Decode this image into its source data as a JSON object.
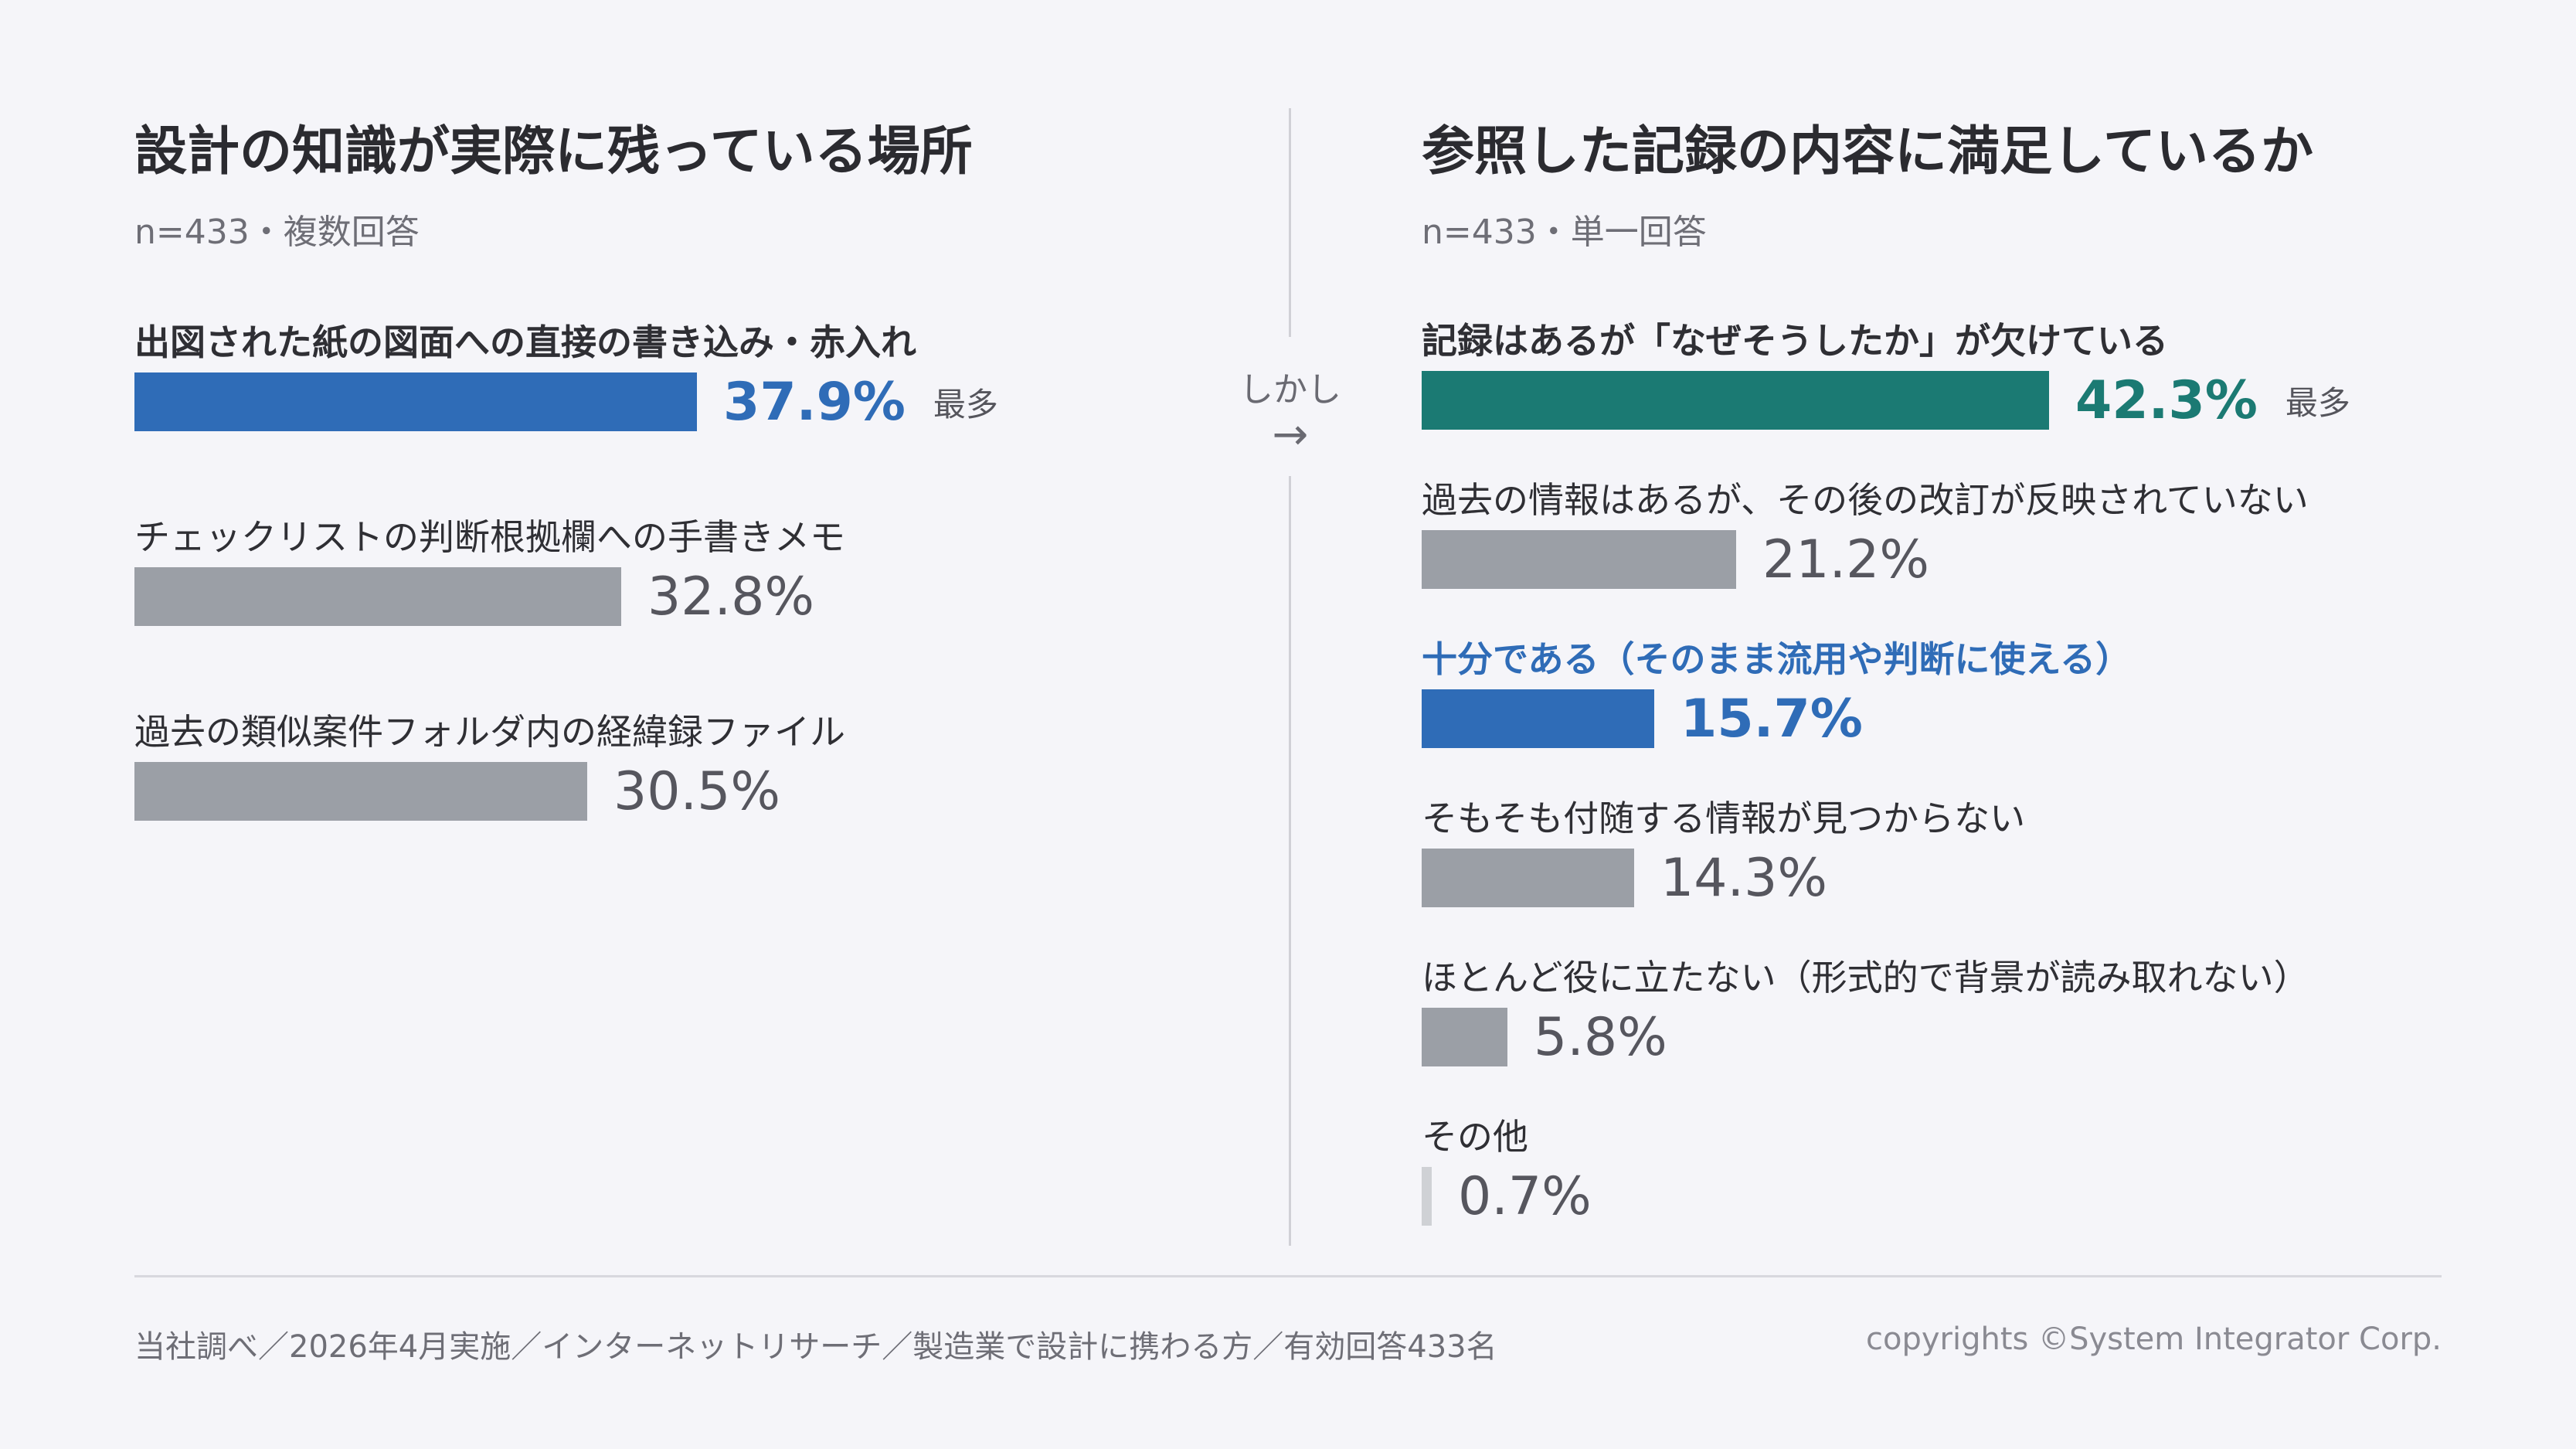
{
  "colors": {
    "blue": "#2f6cb7",
    "teal": "#1b7a73",
    "gray": "#9b9fa6",
    "light_gray": "#cfd1d5",
    "gray_text": "#56565e"
  },
  "transition": {
    "label": "しかし",
    "arrow": "→"
  },
  "footer": {
    "source": "当社調べ／2026年4月実施／インターネットリサーチ／製造業で設計に携わる方／有効回答433名",
    "copyright": "copyrights ©System Integrator Corp."
  },
  "chart_data": [
    {
      "type": "bar",
      "orientation": "horizontal",
      "title": "設計の知識が実際に残っている場所",
      "subtitle": "n=433・複数回答",
      "xlim": [
        0,
        45
      ],
      "unit": "%",
      "grid": false,
      "categories": [
        "出図された紙の図面への直接の書き込み・赤入れ",
        "チェックリストの判断根拠欄への手書きメモ",
        "過去の類似案件フォルダ内の経緯録ファイル"
      ],
      "values": [
        37.9,
        32.8,
        30.5
      ],
      "value_labels": [
        "37.9%",
        "32.8%",
        "30.5%"
      ],
      "bar_colors": [
        "#2f6cb7",
        "#9b9fa6",
        "#9b9fa6"
      ],
      "value_colors": [
        "#2f6cb7",
        "#56565e",
        "#56565e"
      ],
      "emphasis": [
        true,
        false,
        false
      ],
      "label_styles": [
        "bold",
        "normal",
        "normal"
      ],
      "badges": [
        "最多",
        "",
        ""
      ]
    },
    {
      "type": "bar",
      "orientation": "horizontal",
      "title": "参照した記録の内容に満足しているか",
      "subtitle": "n=433・単一回答",
      "xlim": [
        0,
        45
      ],
      "unit": "%",
      "grid": false,
      "categories": [
        "記録はあるが「なぜそうしたか」が欠けている",
        "過去の情報はあるが、その後の改訂が反映されていない",
        "十分である（そのまま流用や判断に使える）",
        "そもそも付随する情報が見つからない",
        "ほとんど役に立たない（形式的で背景が読み取れない）",
        "その他"
      ],
      "values": [
        42.3,
        21.2,
        15.7,
        14.3,
        5.8,
        0.7
      ],
      "value_labels": [
        "42.3%",
        "21.2%",
        "15.7%",
        "14.3%",
        "5.8%",
        "0.7%"
      ],
      "bar_colors": [
        "#1b7a73",
        "#9b9fa6",
        "#2f6cb7",
        "#9b9fa6",
        "#9b9fa6",
        "#cfd1d5"
      ],
      "value_colors": [
        "#1b7a73",
        "#56565e",
        "#2f6cb7",
        "#56565e",
        "#56565e",
        "#56565e"
      ],
      "emphasis": [
        true,
        false,
        true,
        false,
        false,
        false
      ],
      "label_styles": [
        "bold",
        "normal",
        "bold-blue",
        "normal",
        "normal",
        "normal"
      ],
      "badges": [
        "最多",
        "",
        "",
        "",
        "",
        ""
      ]
    }
  ]
}
